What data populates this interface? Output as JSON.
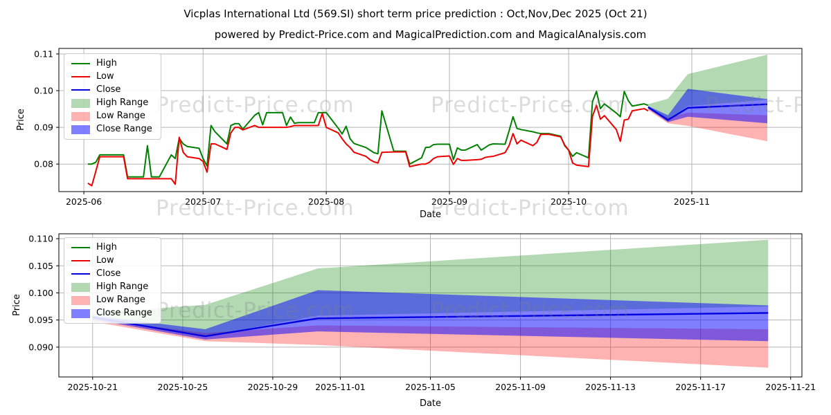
{
  "figure": {
    "title": "Vicplas International Ltd (569.SI) short term price prediction : Oct,Nov,Dec 2025 (Oct 21)",
    "subtitle": "powered by Predict-Price.com and MagicalPrediction.com and MagicalAnalysis.com",
    "watermark": "Predict-Price.com"
  },
  "colors": {
    "high": "#008000",
    "low": "#ee0000",
    "close": "#0000e0",
    "high_band": "rgba(0,128,0,0.30)",
    "low_band": "rgba(255,0,0,0.30)",
    "close_band": "rgba(0,0,255,0.50)"
  },
  "chart_data": [
    {
      "type": "line",
      "title": "",
      "xlabel": "Date",
      "ylabel": "Price",
      "grid": true,
      "legend_position": "upper left",
      "legend": [
        "High",
        "Low",
        "Close",
        "High Range",
        "Low Range",
        "Close Range"
      ],
      "x_range": [
        "2025-05-25T17:00Z",
        "2025-11-28T17:00Z"
      ],
      "y_range": [
        0.0725,
        0.1115
      ],
      "x_ticks": [
        {
          "date": "2025-06-01",
          "label": "2025-06"
        },
        {
          "date": "2025-07-01",
          "label": "2025-07"
        },
        {
          "date": "2025-08-01",
          "label": "2025-08"
        },
        {
          "date": "2025-09-01",
          "label": "2025-09"
        },
        {
          "date": "2025-10-01",
          "label": "2025-10"
        },
        {
          "date": "2025-11-01",
          "label": "2025-11"
        }
      ],
      "y_ticks": [
        {
          "v": 0.08,
          "label": "0.08"
        },
        {
          "v": 0.09,
          "label": "0.09"
        },
        {
          "v": 0.1,
          "label": "0.10"
        },
        {
          "v": 0.11,
          "label": "0.11"
        }
      ],
      "history": {
        "dates": [
          "2025-06-02",
          "2025-06-03",
          "2025-06-04",
          "2025-06-05",
          "2025-06-06",
          "2025-06-09",
          "2025-06-10",
          "2025-06-11",
          "2025-06-12",
          "2025-06-13",
          "2025-06-16",
          "2025-06-17",
          "2025-06-18",
          "2025-06-19",
          "2025-06-20",
          "2025-06-23",
          "2025-06-24",
          "2025-06-25",
          "2025-06-26",
          "2025-06-27",
          "2025-06-30",
          "2025-07-01",
          "2025-07-02",
          "2025-07-03",
          "2025-07-04",
          "2025-07-07",
          "2025-07-08",
          "2025-07-09",
          "2025-07-10",
          "2025-07-11",
          "2025-07-14",
          "2025-07-15",
          "2025-07-16",
          "2025-07-17",
          "2025-07-18",
          "2025-07-21",
          "2025-07-22",
          "2025-07-23",
          "2025-07-24",
          "2025-07-25",
          "2025-07-28",
          "2025-07-29",
          "2025-07-30",
          "2025-07-31",
          "2025-08-01",
          "2025-08-04",
          "2025-08-05",
          "2025-08-06",
          "2025-08-07",
          "2025-08-08",
          "2025-08-11",
          "2025-08-12",
          "2025-08-13",
          "2025-08-14",
          "2025-08-15",
          "2025-08-18",
          "2025-08-19",
          "2025-08-20",
          "2025-08-21",
          "2025-08-22",
          "2025-08-25",
          "2025-08-26",
          "2025-08-27",
          "2025-08-28",
          "2025-08-29",
          "2025-09-01",
          "2025-09-02",
          "2025-09-03",
          "2025-09-04",
          "2025-09-05",
          "2025-09-08",
          "2025-09-09",
          "2025-09-10",
          "2025-09-11",
          "2025-09-12",
          "2025-09-15",
          "2025-09-16",
          "2025-09-17",
          "2025-09-18",
          "2025-09-19",
          "2025-09-22",
          "2025-09-23",
          "2025-09-24",
          "2025-09-25",
          "2025-09-26",
          "2025-09-29",
          "2025-09-30",
          "2025-10-01",
          "2025-10-02",
          "2025-10-03",
          "2025-10-06",
          "2025-10-07",
          "2025-10-08",
          "2025-10-09",
          "2025-10-10",
          "2025-10-13",
          "2025-10-14",
          "2025-10-15",
          "2025-10-16",
          "2025-10-17",
          "2025-10-20",
          "2025-10-21"
        ],
        "high": [
          0.08,
          0.08,
          0.0805,
          0.0825,
          0.0825,
          0.0825,
          0.0825,
          0.0825,
          0.0765,
          0.0765,
          0.0765,
          0.085,
          0.0765,
          0.0765,
          0.0765,
          0.0825,
          0.0815,
          0.087,
          0.0855,
          0.0848,
          0.0843,
          0.0815,
          0.0795,
          0.0905,
          0.0888,
          0.0855,
          0.0905,
          0.091,
          0.091,
          0.0895,
          0.0933,
          0.094,
          0.0907,
          0.094,
          0.094,
          0.094,
          0.0905,
          0.0928,
          0.0911,
          0.0913,
          0.0913,
          0.0913,
          0.094,
          0.094,
          0.094,
          0.0898,
          0.0882,
          0.0903,
          0.0869,
          0.0856,
          0.0845,
          0.0838,
          0.0831,
          0.0828,
          0.0945,
          0.0835,
          0.0835,
          0.0835,
          0.0835,
          0.08,
          0.0817,
          0.0845,
          0.0846,
          0.0853,
          0.0854,
          0.0854,
          0.0812,
          0.0844,
          0.0838,
          0.0838,
          0.0853,
          0.0838,
          0.0845,
          0.0852,
          0.0855,
          0.0854,
          0.089,
          0.0929,
          0.0897,
          0.0894,
          0.0888,
          0.0885,
          0.0883,
          0.0883,
          0.0883,
          0.0876,
          0.085,
          0.0838,
          0.0821,
          0.0831,
          0.0817,
          0.097,
          0.0998,
          0.0951,
          0.0964,
          0.0939,
          0.0929,
          0.0998,
          0.0973,
          0.0958,
          0.0964,
          0.096
        ],
        "low": [
          0.0748,
          0.0741,
          0.078,
          0.082,
          0.082,
          0.082,
          0.082,
          0.082,
          0.076,
          0.076,
          0.076,
          0.076,
          0.076,
          0.076,
          0.076,
          0.076,
          0.0745,
          0.0873,
          0.0832,
          0.082,
          0.0815,
          0.0807,
          0.0778,
          0.0855,
          0.0855,
          0.084,
          0.0885,
          0.09,
          0.09,
          0.0893,
          0.0905,
          0.09,
          0.09,
          0.09,
          0.09,
          0.09,
          0.09,
          0.0902,
          0.0905,
          0.0905,
          0.0905,
          0.0905,
          0.0905,
          0.0938,
          0.09,
          0.0885,
          0.0869,
          0.0855,
          0.0845,
          0.0832,
          0.0821,
          0.0812,
          0.0806,
          0.0803,
          0.0832,
          0.0833,
          0.0833,
          0.0833,
          0.0833,
          0.0793,
          0.08,
          0.08,
          0.0805,
          0.0815,
          0.082,
          0.0822,
          0.0799,
          0.0815,
          0.081,
          0.081,
          0.0812,
          0.0813,
          0.0818,
          0.082,
          0.0821,
          0.0831,
          0.085,
          0.0883,
          0.0855,
          0.0865,
          0.085,
          0.0859,
          0.0881,
          0.0881,
          0.0881,
          0.0874,
          0.0852,
          0.0838,
          0.0803,
          0.0797,
          0.0793,
          0.093,
          0.096,
          0.0922,
          0.0932,
          0.0894,
          0.0862,
          0.092,
          0.0922,
          0.0945,
          0.0951,
          0.0945
        ]
      },
      "forecast": {
        "dates": [
          "2025-10-21",
          "2025-10-26",
          "2025-10-31",
          "2025-11-20"
        ],
        "close": [
          0.0955,
          0.092,
          0.0953,
          0.0963
        ],
        "close_upper": [
          0.0958,
          0.0933,
          0.1005,
          0.0977
        ],
        "close_lower": [
          0.0951,
          0.0914,
          0.0929,
          0.0911
        ],
        "high_upper": [
          0.0963,
          0.0978,
          0.1045,
          0.1098
        ],
        "high_lower": [
          0.0957,
          0.092,
          0.0958,
          0.0975
        ],
        "low_upper": [
          0.0952,
          0.0926,
          0.094,
          0.0933
        ],
        "low_lower": [
          0.0947,
          0.0911,
          0.0904,
          0.0862
        ]
      }
    },
    {
      "type": "line",
      "title": "",
      "xlabel": "Date",
      "ylabel": "Price",
      "grid": true,
      "legend_position": "upper left",
      "legend": [
        "High",
        "Low",
        "Close",
        "High Range",
        "Low Range",
        "Close Range"
      ],
      "x_range": [
        "2025-10-19T12:00Z",
        "2025-11-21T12:00Z"
      ],
      "y_range": [
        0.0845,
        0.1109
      ],
      "x_ticks": [
        {
          "date": "2025-10-21",
          "label": "2025-10-21"
        },
        {
          "date": "2025-10-25",
          "label": "2025-10-25"
        },
        {
          "date": "2025-10-29",
          "label": "2025-10-29"
        },
        {
          "date": "2025-11-01",
          "label": "2025-11-01"
        },
        {
          "date": "2025-11-05",
          "label": "2025-11-05"
        },
        {
          "date": "2025-11-09",
          "label": "2025-11-09"
        },
        {
          "date": "2025-11-13",
          "label": "2025-11-13"
        },
        {
          "date": "2025-11-17",
          "label": "2025-11-17"
        },
        {
          "date": "2025-11-21",
          "label": "2025-11-21"
        }
      ],
      "y_ticks": [
        {
          "v": 0.09,
          "label": "0.090"
        },
        {
          "v": 0.095,
          "label": "0.095"
        },
        {
          "v": 0.1,
          "label": "0.100"
        },
        {
          "v": 0.105,
          "label": "0.105"
        },
        {
          "v": 0.11,
          "label": "0.110"
        }
      ],
      "forecast": {
        "dates": [
          "2025-10-21",
          "2025-10-26",
          "2025-10-31",
          "2025-11-20"
        ],
        "close": [
          0.0955,
          0.092,
          0.0953,
          0.0963
        ],
        "close_upper": [
          0.0958,
          0.0933,
          0.1005,
          0.0977
        ],
        "close_lower": [
          0.0951,
          0.0914,
          0.0929,
          0.0911
        ],
        "high_upper": [
          0.0963,
          0.0978,
          0.1045,
          0.1098
        ],
        "high_lower": [
          0.0957,
          0.092,
          0.0958,
          0.0975
        ],
        "low_upper": [
          0.0952,
          0.0926,
          0.094,
          0.0933
        ],
        "low_lower": [
          0.0947,
          0.0911,
          0.0904,
          0.0862
        ]
      }
    }
  ]
}
